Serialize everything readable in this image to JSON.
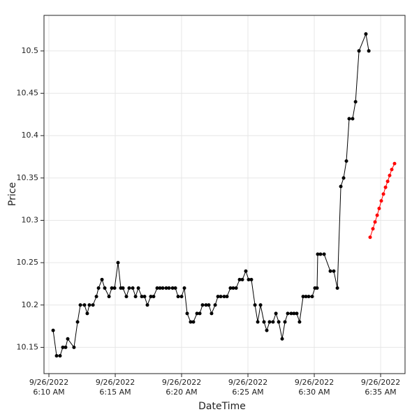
{
  "chart_data": {
    "type": "line",
    "x_label": "DateTime",
    "y_label": "Price",
    "xlim": [
      9.63,
      36.84
    ],
    "ylim": [
      10.119,
      10.542
    ],
    "xticks": [
      {
        "value": 10,
        "label": "9/26/2022\n6:10 AM"
      },
      {
        "value": 15,
        "label": "9/26/2022\n6:15 AM"
      },
      {
        "value": 20,
        "label": "9/26/2022\n6:20 AM"
      },
      {
        "value": 25,
        "label": "9/26/2022\n6:25 AM"
      },
      {
        "value": 30,
        "label": "9/26/2022\n6:30 AM"
      },
      {
        "value": 35,
        "label": "9/26/2022\n6:35 AM"
      }
    ],
    "yticks": [
      10.15,
      10.2,
      10.25,
      10.3,
      10.35,
      10.4,
      10.45,
      10.5
    ],
    "grid": true,
    "series": [
      {
        "color": "#000000",
        "x": [
          10.32,
          10.58,
          10.84,
          11.05,
          11.26,
          11.42,
          11.89,
          12.16,
          12.37,
          12.68,
          12.89,
          13.05,
          13.32,
          13.58,
          13.74,
          14.0,
          14.21,
          14.53,
          14.74,
          14.95,
          15.21,
          15.42,
          15.58,
          15.84,
          16.05,
          16.32,
          16.53,
          16.74,
          17.0,
          17.21,
          17.42,
          17.68,
          17.89,
          18.16,
          18.37,
          18.58,
          18.84,
          19.05,
          19.32,
          19.53,
          19.74,
          20.0,
          20.21,
          20.42,
          20.68,
          20.89,
          21.16,
          21.37,
          21.58,
          21.84,
          22.05,
          22.26,
          22.53,
          22.74,
          22.95,
          23.21,
          23.42,
          23.68,
          23.89,
          24.11,
          24.37,
          24.58,
          24.84,
          25.05,
          25.26,
          25.53,
          25.74,
          25.95,
          26.21,
          26.42,
          26.63,
          26.89,
          27.11,
          27.32,
          27.58,
          27.79,
          28.0,
          28.26,
          28.47,
          28.68,
          28.89,
          29.16,
          29.37,
          29.58,
          29.84,
          30.05,
          30.21,
          30.26,
          30.47,
          30.74,
          31.21,
          31.47,
          31.74,
          32.0,
          32.21,
          32.42,
          32.63,
          32.89,
          33.11,
          33.37,
          33.89,
          34.11
        ],
        "values": [
          10.17,
          10.14,
          10.14,
          10.15,
          10.15,
          10.16,
          10.15,
          10.18,
          10.2,
          10.2,
          10.19,
          10.2,
          10.2,
          10.21,
          10.22,
          10.23,
          10.22,
          10.21,
          10.22,
          10.22,
          10.25,
          10.22,
          10.22,
          10.21,
          10.22,
          10.22,
          10.21,
          10.22,
          10.21,
          10.21,
          10.2,
          10.21,
          10.21,
          10.22,
          10.22,
          10.22,
          10.22,
          10.22,
          10.22,
          10.22,
          10.21,
          10.21,
          10.22,
          10.19,
          10.18,
          10.18,
          10.19,
          10.19,
          10.2,
          10.2,
          10.2,
          10.19,
          10.2,
          10.21,
          10.21,
          10.21,
          10.21,
          10.22,
          10.22,
          10.22,
          10.23,
          10.23,
          10.24,
          10.23,
          10.23,
          10.2,
          10.18,
          10.2,
          10.18,
          10.17,
          10.18,
          10.18,
          10.19,
          10.18,
          10.16,
          10.18,
          10.19,
          10.19,
          10.19,
          10.19,
          10.18,
          10.21,
          10.21,
          10.21,
          10.21,
          10.22,
          10.22,
          10.26,
          10.26,
          10.26,
          10.24,
          10.24,
          10.22,
          10.34,
          10.35,
          10.37,
          10.42,
          10.42,
          10.44,
          10.5,
          10.52,
          10.5
        ]
      },
      {
        "color": "#ff0000",
        "x": [
          34.21,
          34.42,
          34.58,
          34.74,
          34.89,
          35.05,
          35.21,
          35.37,
          35.53,
          35.68,
          35.84,
          36.05
        ],
        "values": [
          10.28,
          10.29,
          10.298,
          10.306,
          10.314,
          10.323,
          10.331,
          10.339,
          10.346,
          10.353,
          10.36,
          10.367
        ]
      }
    ]
  }
}
